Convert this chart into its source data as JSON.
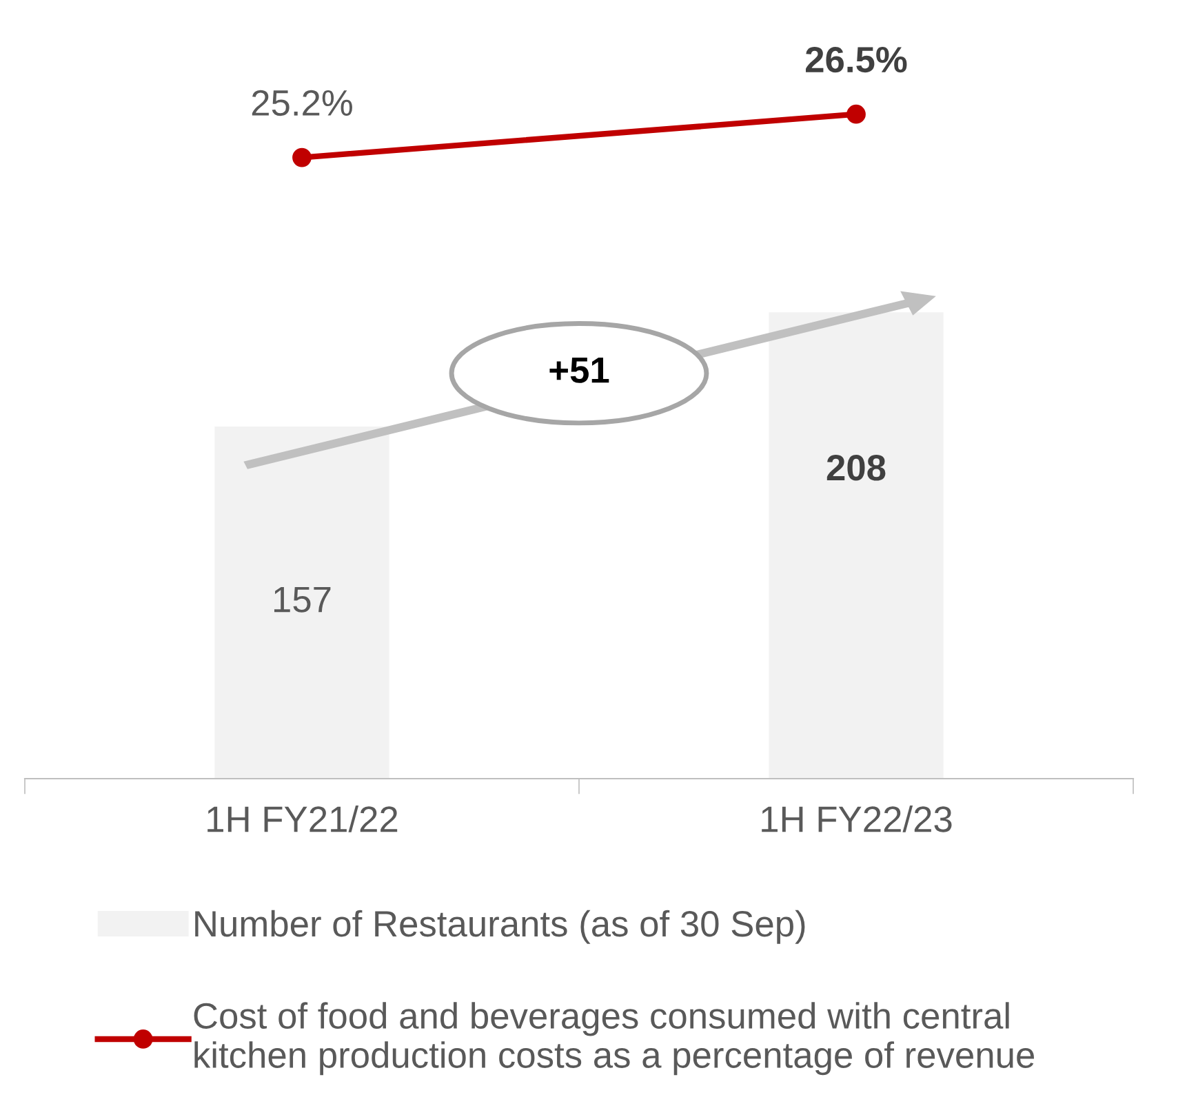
{
  "chart_data": [
    {
      "type": "line",
      "categories": [
        null,
        null
      ],
      "marker": "circle",
      "line_style": "solid",
      "legend": "bottom",
      "tick_labels": false,
      "series": [
        {
          "name": "Cost of food and beverages consumed with central\nkitchen production costs as a percentage of revenue",
          "color": "#c00000",
          "values": [
            25.2,
            26.5
          ],
          "value_labels": [
            "25.2%",
            "26.5%"
          ]
        }
      ]
    },
    {
      "type": "bar",
      "categories": [
        "1H FY21/22",
        "1H FY22/23"
      ],
      "legend": "bottom",
      "grid": false,
      "series": [
        {
          "name": "Number of Restaurants (as of 30 Sep)",
          "color": "#f2f2f2",
          "values": [
            157,
            208
          ],
          "value_labels": [
            "157",
            "208"
          ]
        }
      ],
      "annotations": [
        "+51"
      ]
    }
  ]
}
